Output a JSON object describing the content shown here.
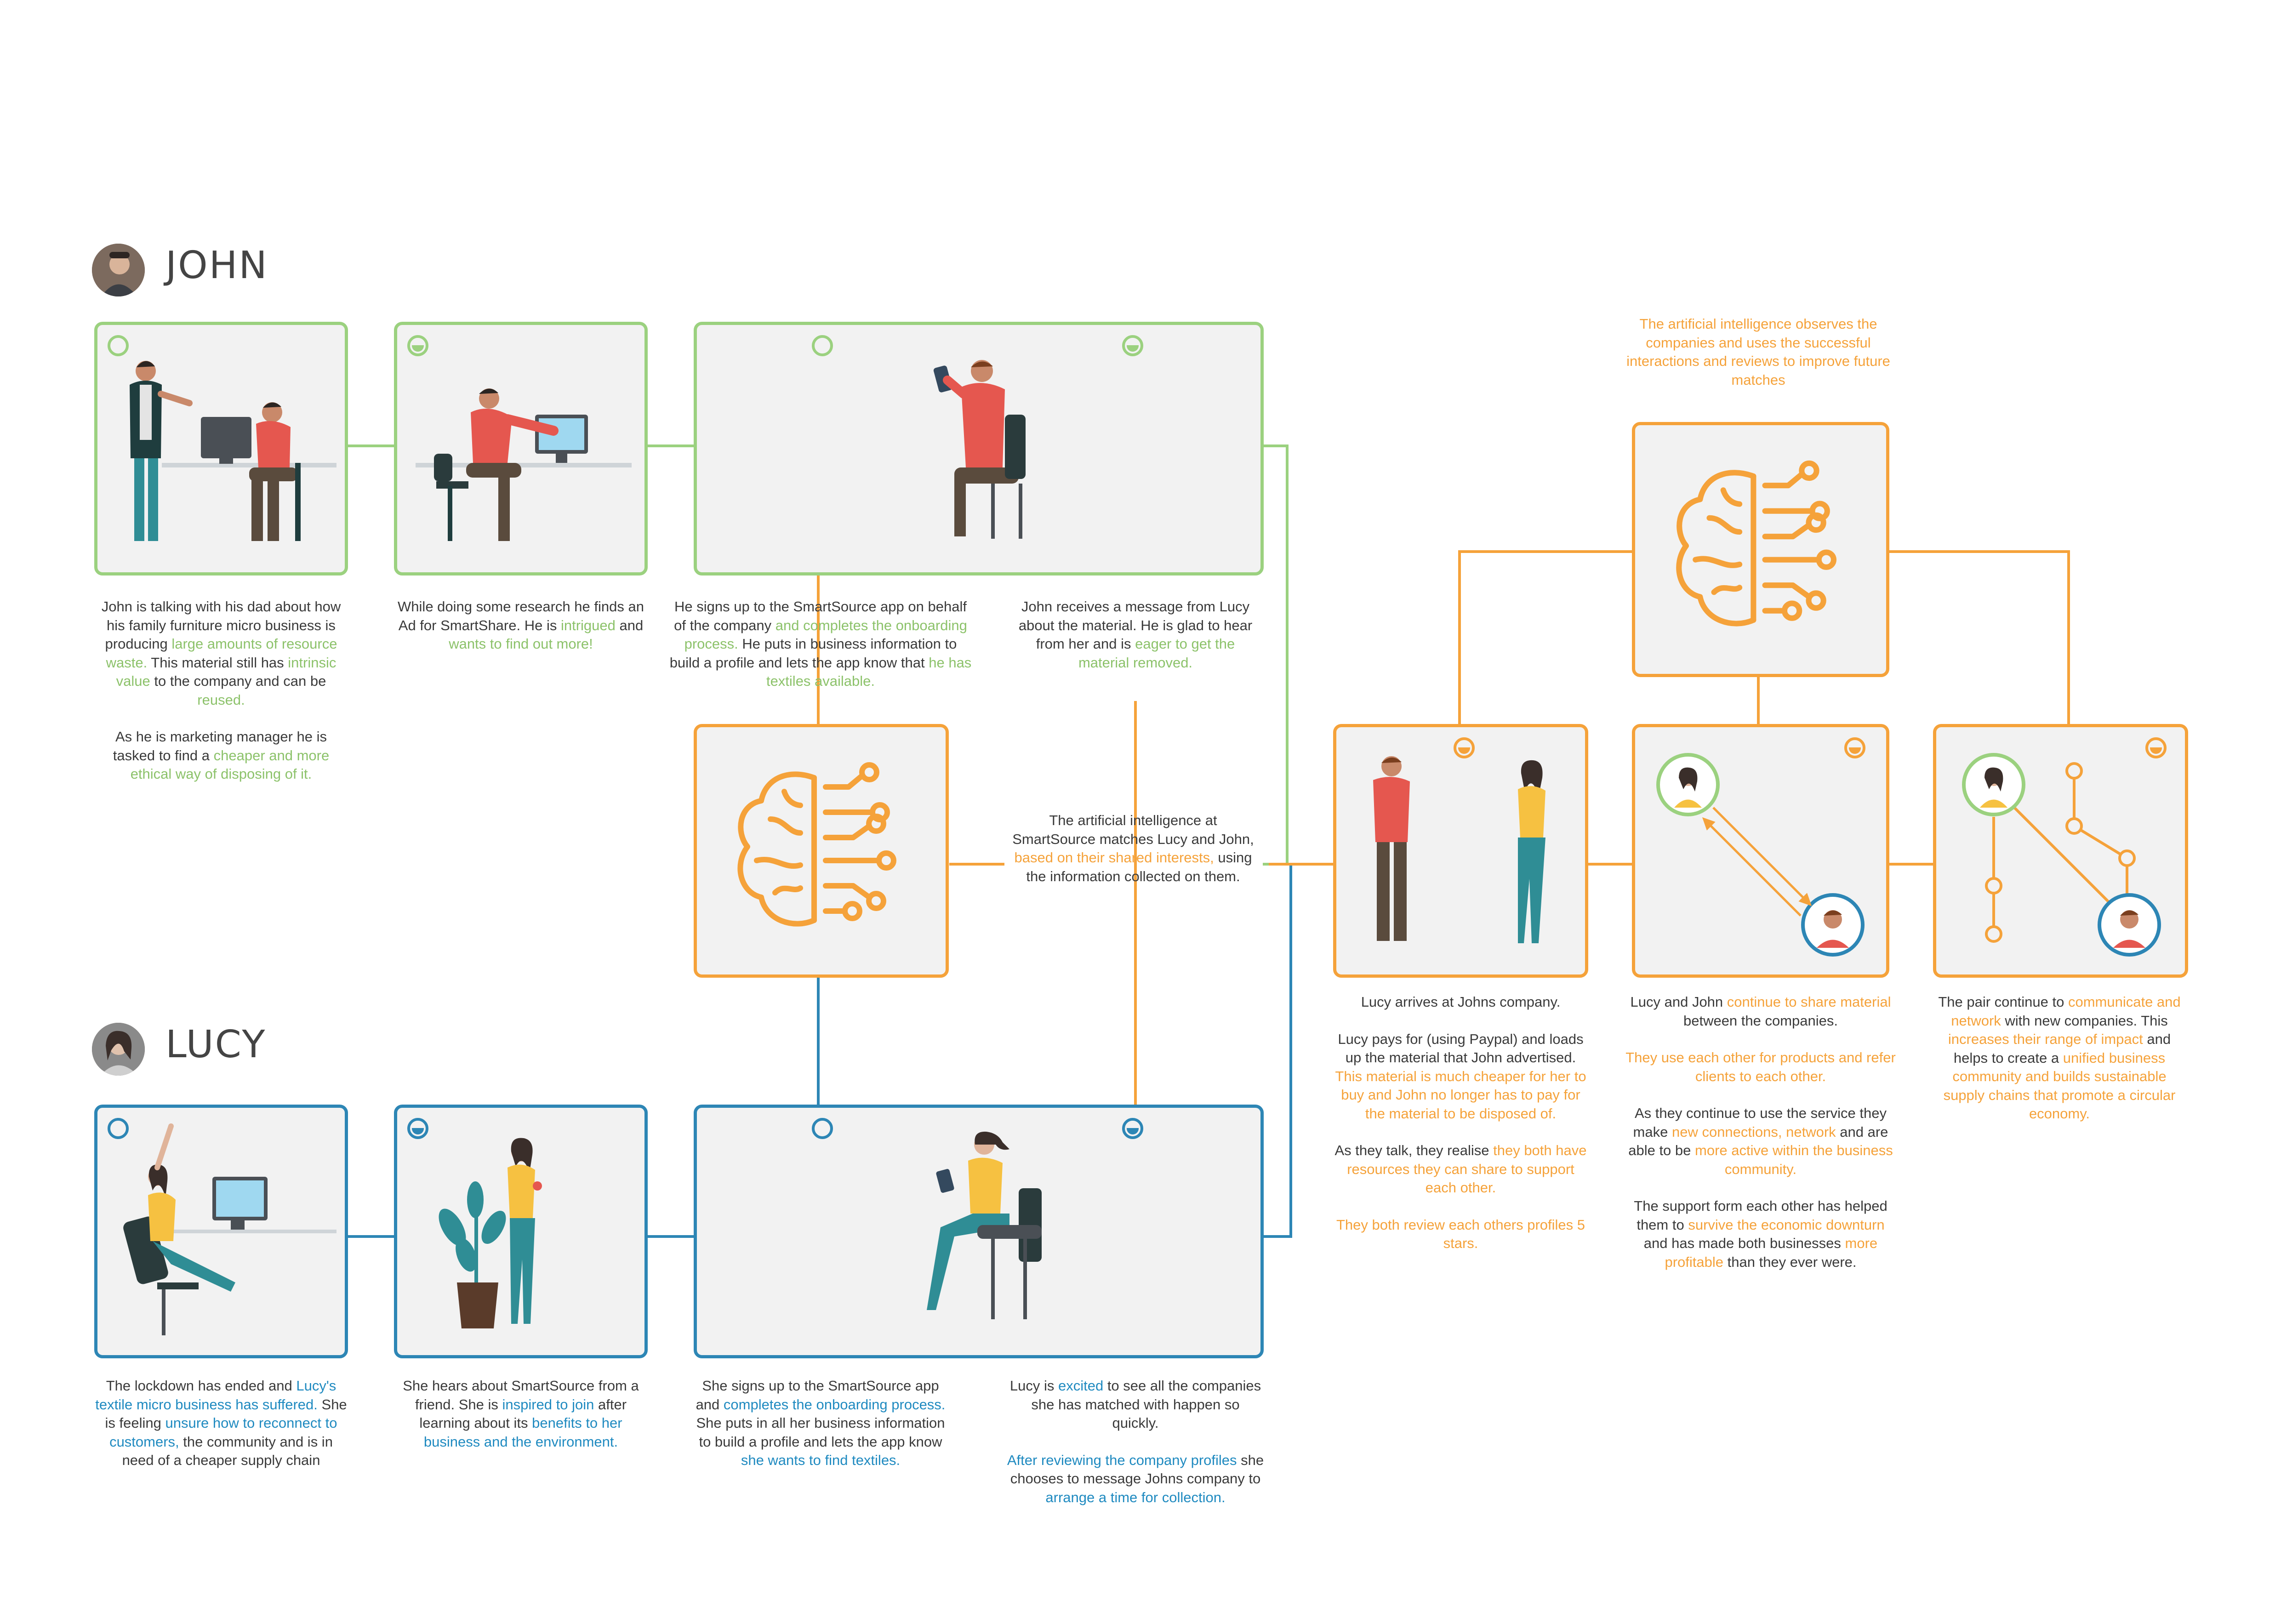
{
  "personas": {
    "john": {
      "name": "JOHN"
    },
    "lucy": {
      "name": "LUCY"
    }
  },
  "colors": {
    "john_accent": "#9bd17f",
    "lucy_accent": "#2d86b5",
    "ai_accent": "#f5a23a",
    "card_fill": "#f2f2f2",
    "body_text": "#3a3a3a"
  },
  "john_steps": [
    {
      "icon": "neutral-face-icon",
      "segments": [
        {
          "t": "John is talking with his dad about how his family furniture micro business is producing ",
          "c": "plain"
        },
        {
          "t": "large amounts of resource waste.",
          "c": "g"
        },
        {
          "t": " This material still has ",
          "c": "plain"
        },
        {
          "t": "intrinsic value",
          "c": "g"
        },
        {
          "t": " to the company and can be ",
          "c": "plain"
        },
        {
          "t": "reused.",
          "c": "g"
        }
      ],
      "segments2": [
        {
          "t": "As he is marketing manager he is tasked to find a ",
          "c": "plain"
        },
        {
          "t": "cheaper and more ethical way of disposing of it.",
          "c": "g"
        }
      ]
    },
    {
      "icon": "satisfied-face-icon",
      "segments": [
        {
          "t": "While doing some research he finds an Ad for SmartShare. He is ",
          "c": "plain"
        },
        {
          "t": "intrigued",
          "c": "g"
        },
        {
          "t": " and ",
          "c": "plain"
        },
        {
          "t": "wants to find out more!",
          "c": "g"
        }
      ]
    },
    {
      "icon": "happy-face-icon",
      "segments": [
        {
          "t": "He signs up to the SmartSource app on behalf of the company ",
          "c": "plain"
        },
        {
          "t": "and completes the onboarding process.",
          "c": "g"
        },
        {
          "t": " He puts in business information  to build a profile and lets the app know that ",
          "c": "plain"
        },
        {
          "t": "he has textiles available.",
          "c": "g"
        }
      ]
    },
    {
      "icon": "satisfied-face-icon",
      "segments": [
        {
          "t": "John receives a message from Lucy about the material. He is glad to hear from her and is ",
          "c": "plain"
        },
        {
          "t": "eager to get the material removed.",
          "c": "g"
        }
      ]
    }
  ],
  "lucy_steps": [
    {
      "icon": "frustrated-face-icon",
      "segments": [
        {
          "t": "The lockdown has ended and ",
          "c": "plain"
        },
        {
          "t": "Lucy's textile micro business has suffered.",
          "c": "b"
        },
        {
          "t": " She is feeling ",
          "c": "plain"
        },
        {
          "t": "unsure how to reconnect to customers,",
          "c": "b"
        },
        {
          "t": " the community and is in need of a cheaper supply chain",
          "c": "plain"
        }
      ]
    },
    {
      "icon": "satisfied-face-icon",
      "segments": [
        {
          "t": "She hears about SmartSource from a friend. She is ",
          "c": "plain"
        },
        {
          "t": "inspired to join",
          "c": "b"
        },
        {
          "t": " after learning about its ",
          "c": "plain"
        },
        {
          "t": "benefits to her business and the environment.",
          "c": "b"
        }
      ]
    },
    {
      "icon": "happy-face-icon",
      "segments": [
        {
          "t": "She signs up to the SmartSource app and ",
          "c": "plain"
        },
        {
          "t": "completes the onboarding process.",
          "c": "b"
        },
        {
          "t": " She puts in all her business information to build a profile and lets the app know ",
          "c": "plain"
        },
        {
          "t": "she wants to find textiles.",
          "c": "b"
        }
      ]
    },
    {
      "icon": "satisfied-face-icon",
      "segments": [
        {
          "t": "Lucy is ",
          "c": "plain"
        },
        {
          "t": "excited",
          "c": "b"
        },
        {
          "t": " to see all the companies she has matched with happen so quickly.",
          "c": "plain"
        }
      ],
      "segments2": [
        {
          "t": "After reviewing the company profiles",
          "c": "b"
        },
        {
          "t": " she chooses to message Johns company to ",
          "c": "plain"
        },
        {
          "t": "arrange a time for collection.",
          "c": "b"
        }
      ]
    }
  ],
  "ai_match": {
    "icon": "ai-brain-icon",
    "segments": [
      {
        "t": "The artificial intelligence at SmartSource matches Lucy and John, ",
        "c": "plain"
      },
      {
        "t": "based on their shared interests,",
        "c": "o"
      },
      {
        "t": " using the  information collected on them.",
        "c": "plain"
      }
    ]
  },
  "ai_learn": {
    "icon": "ai-brain-icon",
    "segments": [
      {
        "t": "The artificial intelligence observes the companies and uses the successful interactions and reviews to improve future matches",
        "c": "o"
      }
    ]
  },
  "outcomes": [
    {
      "icon": "satisfied-face-icon",
      "paras": [
        [
          {
            "t": "Lucy arrives at Johns company.",
            "c": "plain"
          }
        ],
        [
          {
            "t": "Lucy pays for (using Paypal) and loads up the material that John advertised. ",
            "c": "plain"
          },
          {
            "t": "This material is much cheaper for her to buy and John no longer has to pay for the material to be disposed of.",
            "c": "o"
          }
        ],
        [
          {
            "t": "As they talk, they realise ",
            "c": "plain"
          },
          {
            "t": "they both have resources they can share to support each other.",
            "c": "o"
          }
        ],
        [
          {
            "t": "They both review each others profiles 5 stars.",
            "c": "o"
          }
        ]
      ]
    },
    {
      "icon": "satisfied-face-icon",
      "paras": [
        [
          {
            "t": "Lucy and John ",
            "c": "plain"
          },
          {
            "t": "continue to share material",
            "c": "o"
          },
          {
            "t": " between the companies.",
            "c": "plain"
          }
        ],
        [
          {
            "t": "They use each other for products and refer clients to each other.",
            "c": "o"
          }
        ],
        [
          {
            "t": "As they continue to use the service they make ",
            "c": "plain"
          },
          {
            "t": "new connections, network",
            "c": "o"
          },
          {
            "t": " and are able to be ",
            "c": "plain"
          },
          {
            "t": "more active within the business community.",
            "c": "o"
          }
        ],
        [
          {
            "t": "The support form each other has helped them to ",
            "c": "plain"
          },
          {
            "t": "survive the economic downturn",
            "c": "o"
          },
          {
            "t": " and has made both businesses ",
            "c": "plain"
          },
          {
            "t": "more profitable",
            "c": "o"
          },
          {
            "t": " than they ever were.",
            "c": "plain"
          }
        ]
      ]
    },
    {
      "icon": "satisfied-face-icon",
      "paras": [
        [
          {
            "t": "The pair continue to ",
            "c": "plain"
          },
          {
            "t": "communicate and network",
            "c": "o"
          },
          {
            "t": " with new companies. This ",
            "c": "plain"
          },
          {
            "t": "increases their range of impact",
            "c": "o"
          },
          {
            "t": " and helps to create a ",
            "c": "plain"
          },
          {
            "t": "unified business community and builds sustainable supply chains that promote a circular economy.",
            "c": "o"
          }
        ]
      ]
    }
  ]
}
